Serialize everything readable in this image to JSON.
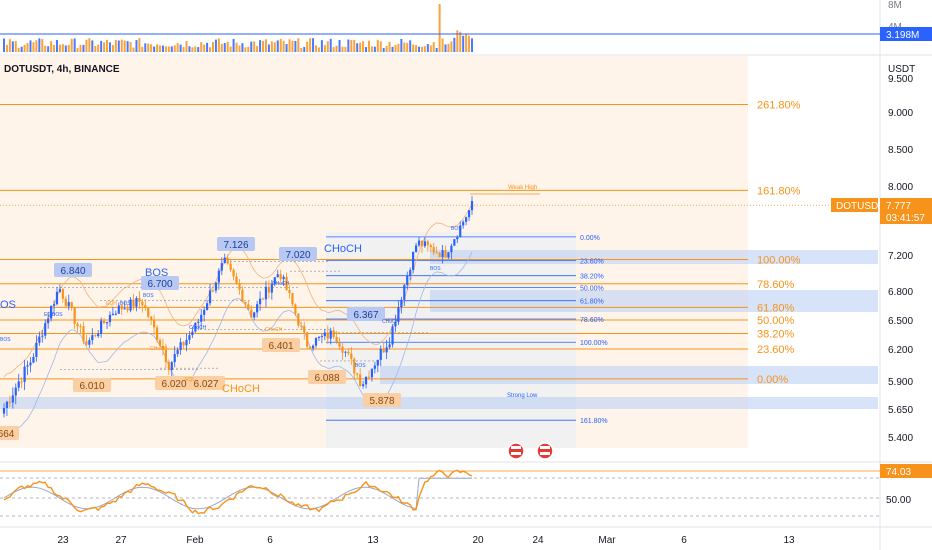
{
  "header": {
    "symbol_title": "DOTUSDT, 4h, BINANCE"
  },
  "axis": {
    "currency_label": "USDT",
    "price_ticks": [
      "9.500",
      "9.000",
      "8.500",
      "8.000",
      "7.200",
      "6.800",
      "6.500",
      "6.200",
      "5.900",
      "5.650",
      "5.400"
    ],
    "rsi_ticks": [
      "50.00"
    ],
    "volume_ticks": [
      "8M",
      "4M"
    ],
    "date_ticks": [
      "23",
      "27",
      "Feb",
      "6",
      "13",
      "20",
      "24",
      "Mar",
      "6",
      "13"
    ]
  },
  "price_badge": {
    "symbol": "DOTUSDT",
    "price": "7.777",
    "countdown": "03:41:57"
  },
  "volume_badge": "3.198M",
  "rsi_badge": "74.03",
  "fib_right": [
    {
      "label": "261.80%",
      "price": 9.11
    },
    {
      "label": "161.80%",
      "price": 7.95
    },
    {
      "label": "100.00%",
      "price": 7.15
    },
    {
      "label": "78.60%",
      "price": 6.88
    },
    {
      "label": "61.80%",
      "price": 6.63
    },
    {
      "label": "50.00%",
      "price": 6.5
    },
    {
      "label": "38.20%",
      "price": 6.36
    },
    {
      "label": "23.60%",
      "price": 6.2
    },
    {
      "label": "0.00%",
      "price": 5.92
    }
  ],
  "fib_small": [
    {
      "label": "0.00%",
      "price": 7.41
    },
    {
      "label": "23.60%",
      "price": 7.14
    },
    {
      "label": "38.20%",
      "price": 6.97
    },
    {
      "label": "50.00%",
      "price": 6.84
    },
    {
      "label": "61.80%",
      "price": 6.7
    },
    {
      "label": "78.60%",
      "price": 6.51
    },
    {
      "label": "100.00%",
      "price": 6.27
    },
    {
      "label": "161.80%",
      "price": 5.55
    }
  ],
  "price_labels": [
    {
      "text": "6.840",
      "price": 6.84
    },
    {
      "text": "6.700",
      "price": 6.7
    },
    {
      "text": "7.126",
      "price": 7.126
    },
    {
      "text": "7.020",
      "price": 7.02
    },
    {
      "text": "6.367",
      "price": 6.367
    },
    {
      "text": "6.401",
      "price": 6.401
    },
    {
      "text": "6.010",
      "price": 6.01
    },
    {
      "text": "6.020",
      "price": 6.02
    },
    {
      "text": "6.027",
      "price": 6.027
    },
    {
      "text": "6.088",
      "price": 6.088
    },
    {
      "text": "5.878",
      "price": 5.878
    },
    {
      "text": "664",
      "price": 5.664
    }
  ],
  "annotations": {
    "bos_large": "BOS",
    "choch_large_1": "CHoCH",
    "choch_large_2": "CHoCH",
    "os_cut": "OS",
    "weak_high": "Weak High",
    "strong_low": "Strong Low",
    "small_bos": "BOS",
    "small_choch": "CHoCH",
    "small_eqh": "EQH",
    "small_eql": "EQL"
  },
  "colors": {
    "up": "#2962ff",
    "down": "#f7931a",
    "fib_orange": "#f7931a",
    "fib_blue": "#2962ff",
    "rsi": "#f7931a",
    "rsi_ma": "#9aa6c7"
  },
  "chart_data": {
    "type": "candlestick",
    "symbol": "DOTUSDT",
    "timeframe": "4h",
    "exchange": "BINANCE",
    "ylim": [
      5.3,
      9.6
    ],
    "approx_close_path": [
      {
        "x": "Jan 20",
        "y": 5.66
      },
      {
        "x": "Jan 22",
        "y": 6.1
      },
      {
        "x": "Jan 23",
        "y": 6.84
      },
      {
        "x": "Jan 25",
        "y": 6.25
      },
      {
        "x": "Jan 27",
        "y": 6.6
      },
      {
        "x": "Jan 29",
        "y": 6.7
      },
      {
        "x": "Jan 31",
        "y": 6.05
      },
      {
        "x": "Feb 2",
        "y": 6.45
      },
      {
        "x": "Feb 3",
        "y": 7.126
      },
      {
        "x": "Feb 5",
        "y": 6.55
      },
      {
        "x": "Feb 7",
        "y": 7.02
      },
      {
        "x": "Feb 9",
        "y": 6.25
      },
      {
        "x": "Feb 11",
        "y": 6.367
      },
      {
        "x": "Feb 13",
        "y": 5.878
      },
      {
        "x": "Feb 15",
        "y": 6.3
      },
      {
        "x": "Feb 17",
        "y": 7.35
      },
      {
        "x": "Feb 18",
        "y": 7.2
      },
      {
        "x": "Feb 19",
        "y": 7.777
      }
    ]
  }
}
